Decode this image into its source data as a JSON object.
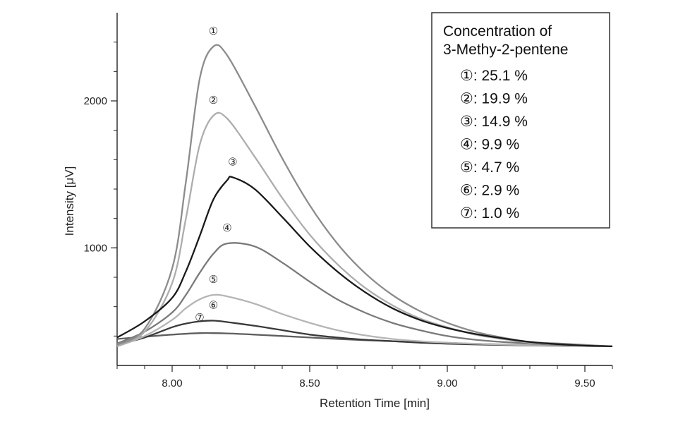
{
  "chart_data": {
    "type": "line",
    "title": "",
    "xlabel": "Retention Time [min]",
    "ylabel": "Intensity [μV]",
    "xlim": [
      7.8,
      9.6
    ],
    "ylim": [
      200,
      2600
    ],
    "x_ticks": [
      8.0,
      8.5,
      9.0,
      9.5
    ],
    "x_tick_labels": [
      "8.00",
      "8.50",
      "9.00",
      "9.50"
    ],
    "y_ticks": [
      1000,
      2000
    ],
    "y_tick_labels": [
      "1000",
      "2000"
    ],
    "grid": false,
    "legend": {
      "position": "top-right",
      "title_lines": [
        "Concentration of",
        "3-Methy-2-pentene"
      ],
      "entries": [
        {
          "marker": "①",
          "label": ": 25.1 %"
        },
        {
          "marker": "②",
          "label": ": 19.9 %"
        },
        {
          "marker": "③",
          "label": ": 14.9 %"
        },
        {
          "marker": "④",
          "label": ": 9.9 %"
        },
        {
          "marker": "⑤",
          "label": ": 4.7 %"
        },
        {
          "marker": "⑥",
          "label": ": 2.9 %"
        },
        {
          "marker": "⑦",
          "label": ": 1.0 %"
        }
      ]
    },
    "series": [
      {
        "marker": "①",
        "color": "#8c8c8c",
        "x": [
          7.8,
          7.9,
          8.0,
          8.05,
          8.1,
          8.15,
          8.2,
          8.3,
          8.4,
          8.5,
          8.6,
          8.7,
          8.8,
          8.9,
          9.0,
          9.1,
          9.2,
          9.3,
          9.4,
          9.5,
          9.6
        ],
        "y": [
          340,
          450,
          860,
          1450,
          2150,
          2370,
          2310,
          1970,
          1610,
          1290,
          1030,
          830,
          680,
          570,
          490,
          430,
          390,
          360,
          350,
          340,
          330
        ]
      },
      {
        "marker": "②",
        "color": "#adadad",
        "x": [
          7.8,
          7.9,
          8.0,
          8.05,
          8.1,
          8.15,
          8.2,
          8.3,
          8.4,
          8.5,
          8.6,
          8.7,
          8.8,
          8.9,
          9.0,
          9.1,
          9.2,
          9.3,
          9.4,
          9.5,
          9.6
        ],
        "y": [
          330,
          430,
          760,
          1200,
          1700,
          1900,
          1880,
          1620,
          1340,
          1090,
          890,
          730,
          610,
          520,
          460,
          410,
          380,
          355,
          345,
          335,
          330
        ]
      },
      {
        "marker": "③",
        "color": "#1a1a1a",
        "x": [
          7.8,
          7.9,
          8.0,
          8.05,
          8.1,
          8.15,
          8.2,
          8.22,
          8.3,
          8.4,
          8.5,
          8.6,
          8.7,
          8.8,
          8.9,
          9.0,
          9.1,
          9.2,
          9.3,
          9.4,
          9.5,
          9.6
        ],
        "y": [
          390,
          500,
          660,
          840,
          1080,
          1330,
          1460,
          1480,
          1400,
          1210,
          1010,
          840,
          700,
          590,
          510,
          455,
          415,
          385,
          360,
          345,
          335,
          330
        ]
      },
      {
        "marker": "④",
        "color": "#7a7a7a",
        "x": [
          7.8,
          7.9,
          8.0,
          8.05,
          8.1,
          8.15,
          8.2,
          8.3,
          8.4,
          8.5,
          8.6,
          8.7,
          8.8,
          8.9,
          9.0,
          9.1,
          9.2,
          9.3,
          9.4,
          9.5,
          9.6
        ],
        "y": [
          350,
          430,
          560,
          680,
          830,
          960,
          1030,
          1010,
          900,
          770,
          650,
          560,
          490,
          440,
          400,
          375,
          360,
          350,
          340,
          335,
          330
        ]
      },
      {
        "marker": "⑤",
        "color": "#b5b5b5",
        "x": [
          7.8,
          7.9,
          8.0,
          8.05,
          8.1,
          8.15,
          8.2,
          8.3,
          8.4,
          8.5,
          8.6,
          8.7,
          8.8,
          8.9,
          9.0,
          9.1,
          9.2,
          9.3,
          9.4,
          9.5,
          9.6
        ],
        "y": [
          330,
          400,
          510,
          590,
          650,
          680,
          670,
          620,
          550,
          490,
          440,
          405,
          380,
          365,
          355,
          348,
          342,
          338,
          335,
          332,
          330
        ]
      },
      {
        "marker": "⑥",
        "color": "#3a3a3a",
        "x": [
          7.8,
          7.9,
          8.0,
          8.05,
          8.1,
          8.15,
          8.2,
          8.3,
          8.4,
          8.5,
          8.6,
          8.7,
          8.8,
          8.9,
          9.0,
          9.1,
          9.2,
          9.3,
          9.4,
          9.5,
          9.6
        ],
        "y": [
          340,
          390,
          460,
          485,
          500,
          505,
          495,
          470,
          440,
          410,
          390,
          375,
          365,
          355,
          348,
          343,
          339,
          336,
          334,
          332,
          330
        ]
      },
      {
        "marker": "⑦",
        "color": "#5e5e5e",
        "x": [
          7.8,
          7.9,
          8.0,
          8.1,
          8.15,
          8.2,
          8.3,
          8.4,
          8.5,
          8.6,
          8.7,
          8.8,
          8.9,
          9.0,
          9.2,
          9.4,
          9.6
        ],
        "y": [
          380,
          395,
          410,
          420,
          420,
          418,
          410,
          400,
          390,
          380,
          372,
          365,
          358,
          352,
          343,
          336,
          330
        ]
      }
    ]
  }
}
